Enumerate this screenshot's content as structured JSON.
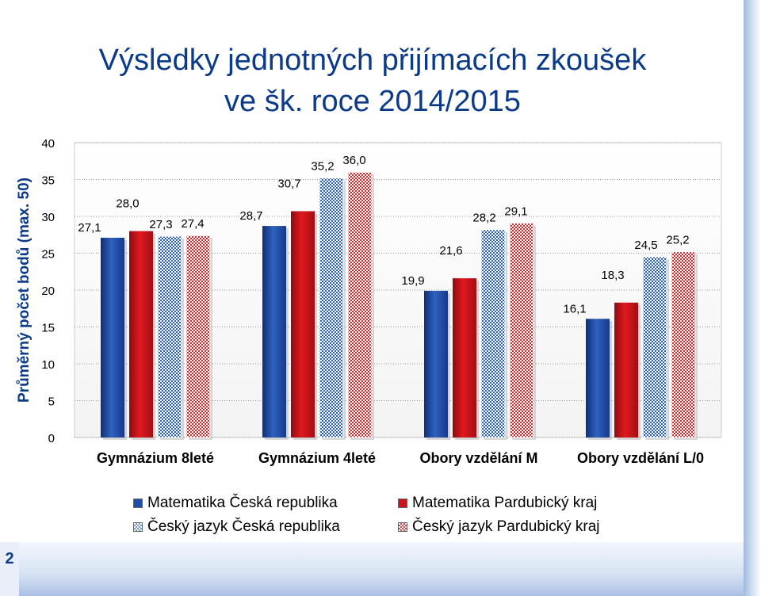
{
  "page": {
    "title_line1": "Výsledky jednotných přijímacích zkoušek",
    "title_line2": "ve šk. roce 2014/2015",
    "page_number": "2"
  },
  "colors": {
    "title": "#0b3a8a",
    "series": [
      "#1f4ea8",
      "#c8141a",
      "#6f97d1",
      "#d94a4d"
    ]
  },
  "chart_data": {
    "type": "bar",
    "title": "",
    "ylabel": "Průměrný počet bodů (max. 50)",
    "xlabel": "",
    "ylim": [
      0,
      40
    ],
    "ytick_step": 5,
    "yticks": [
      "0",
      "5",
      "10",
      "15",
      "20",
      "25",
      "30",
      "35",
      "40"
    ],
    "grid": true,
    "legend_position": "bottom",
    "categories": [
      "Gymnázium 8leté",
      "Gymnázium 4leté",
      "Obory vzdělání M",
      "Obory vzdělání L/0"
    ],
    "series": [
      {
        "name": "Matematika Česká republika",
        "values": [
          27.1,
          28.7,
          19.9,
          16.1
        ],
        "labels": [
          "27,1",
          "28,7",
          "19,9",
          "16,1"
        ],
        "style": "solid"
      },
      {
        "name": "Matematika Pardubický kraj",
        "values": [
          28.0,
          30.7,
          21.6,
          18.3
        ],
        "labels": [
          "28,0",
          "30,7",
          "21,6",
          "18,3"
        ],
        "style": "solid"
      },
      {
        "name": "Český jazyk Česká republika",
        "values": [
          27.3,
          35.2,
          28.2,
          24.5
        ],
        "labels": [
          "27,3",
          "35,2",
          "28,2",
          "24,5"
        ],
        "style": "checkered"
      },
      {
        "name": "Český jazyk Pardubický kraj",
        "values": [
          27.4,
          36.0,
          29.1,
          25.2
        ],
        "labels": [
          "27,4",
          "36,0",
          "29,1",
          "25,2"
        ],
        "style": "checkered"
      }
    ]
  }
}
